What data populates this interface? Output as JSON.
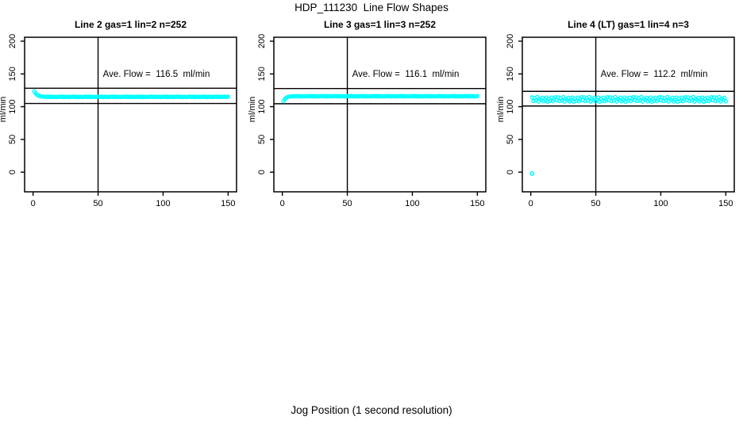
{
  "figure": {
    "title": "HDP_111230  Line Flow Shapes",
    "xlabel": "Jog Position (1 second resolution)",
    "background": "#ffffff",
    "point_color": "#00ffff",
    "line_color": "#000000"
  },
  "chart_data": {
    "type": "scatter",
    "title": "HDP_111230  Line Flow Shapes",
    "xlabel": "Jog Position (1 second resolution)",
    "ylabel": "ml/min",
    "xlim": [
      -6.5,
      156.5
    ],
    "ylim": [
      -30,
      206
    ],
    "x_ticks": [
      0,
      50,
      100,
      150
    ],
    "y_ticks": [
      0,
      50,
      100,
      150,
      200
    ],
    "vline_x": 50,
    "grid": false,
    "legend": "none",
    "panels": [
      {
        "title": "Line 2 gas=1 lin=2 n=252",
        "gas": 1,
        "lin": 2,
        "n": 252,
        "ave_flow": 116.5,
        "ave_flow_label": "Ave. Flow =  116.5  ml/min",
        "ref_lines": [
          128.2,
          104.9
        ],
        "x_start": 1,
        "x_step": 1,
        "y": [
          123.5,
          120.3,
          118.4,
          117.1,
          116.3,
          115.8,
          115.5,
          115.3,
          115.1,
          115.0,
          115.3,
          114.8,
          115.4,
          114.6,
          115.1,
          114.9,
          115.2,
          114.7,
          115.0,
          115.3,
          115.3,
          114.8,
          115.4,
          114.6,
          115.1,
          114.9,
          115.2,
          114.7,
          115.0,
          115.3,
          115.3,
          114.8,
          115.4,
          114.6,
          115.1,
          114.9,
          115.2,
          114.7,
          115.0,
          115.3,
          115.3,
          114.8,
          115.4,
          114.6,
          115.1,
          114.9,
          115.2,
          114.7,
          115.0,
          115.3,
          115.3,
          114.8,
          115.4,
          114.6,
          115.1,
          114.9,
          115.2,
          114.7,
          115.0,
          115.3,
          115.3,
          114.8,
          115.4,
          114.6,
          115.1,
          114.9,
          115.2,
          114.7,
          115.0,
          115.3,
          115.3,
          114.8,
          115.4,
          114.6,
          115.1,
          114.9,
          115.2,
          114.7,
          115.0,
          115.3,
          115.3,
          114.8,
          115.4,
          114.6,
          115.1,
          114.9,
          115.2,
          114.7,
          115.0,
          115.3,
          115.3,
          114.8,
          115.4,
          114.6,
          115.1,
          114.9,
          115.2,
          114.7,
          115.0,
          115.3,
          115.3,
          114.8,
          115.4,
          114.6,
          115.1,
          114.9,
          115.2,
          114.7,
          115.0,
          115.3,
          115.3,
          114.8,
          115.4,
          114.6,
          115.1,
          114.9,
          115.2,
          114.7,
          115.0,
          115.3,
          115.3,
          114.8,
          115.4,
          114.6,
          115.1,
          114.9,
          115.2,
          114.7,
          115.0,
          115.3,
          115.3,
          114.8,
          115.4,
          114.6,
          115.1,
          114.9,
          115.2,
          114.7,
          115.0,
          115.3,
          115.3,
          114.8,
          115.4,
          114.6,
          115.1,
          114.9,
          115.2,
          114.7,
          115.0,
          115.3
        ]
      },
      {
        "title": "Line 3 gas=1 lin=3 n=252",
        "gas": 1,
        "lin": 3,
        "n": 252,
        "ave_flow": 116.1,
        "ave_flow_label": "Ave. Flow =  116.1  ml/min",
        "ref_lines": [
          127.7,
          104.5
        ],
        "x_start": 1,
        "x_step": 1,
        "y": [
          108.4,
          111.6,
          113.5,
          114.6,
          115.2,
          115.5,
          115.7,
          115.8,
          115.9,
          115.9,
          116.2,
          115.7,
          116.3,
          115.5,
          116.0,
          115.8,
          116.1,
          115.6,
          115.9,
          116.2,
          116.2,
          115.7,
          116.3,
          115.5,
          116.0,
          115.8,
          116.1,
          115.6,
          115.9,
          116.2,
          116.2,
          115.7,
          116.3,
          115.5,
          116.0,
          115.8,
          116.1,
          115.6,
          115.9,
          116.2,
          116.2,
          115.7,
          116.3,
          115.5,
          116.0,
          115.8,
          116.1,
          115.6,
          115.9,
          116.2,
          116.2,
          115.7,
          116.3,
          115.5,
          116.0,
          115.8,
          116.1,
          115.6,
          115.9,
          116.2,
          116.2,
          115.7,
          116.3,
          115.5,
          116.0,
          115.8,
          116.1,
          115.6,
          115.9,
          116.2,
          116.2,
          115.7,
          116.3,
          115.5,
          116.0,
          115.8,
          116.1,
          115.6,
          115.9,
          116.2,
          116.2,
          115.7,
          116.3,
          115.5,
          116.0,
          115.8,
          116.1,
          115.6,
          115.9,
          116.2,
          116.2,
          115.7,
          116.3,
          115.5,
          116.0,
          115.8,
          116.1,
          115.6,
          115.9,
          116.2,
          116.2,
          115.7,
          116.3,
          115.5,
          116.0,
          115.8,
          116.1,
          115.6,
          115.9,
          116.2,
          116.2,
          115.7,
          116.3,
          115.5,
          116.0,
          115.8,
          116.1,
          115.6,
          115.9,
          116.2,
          116.2,
          115.7,
          116.3,
          115.5,
          116.0,
          115.8,
          116.1,
          115.6,
          115.9,
          116.2,
          116.2,
          115.7,
          116.3,
          115.5,
          116.0,
          115.8,
          116.1,
          115.6,
          115.9,
          116.2,
          116.2,
          115.7,
          116.3,
          115.5,
          116.0,
          115.8,
          116.1,
          115.6,
          115.9,
          116.2
        ]
      },
      {
        "title": "Line 4 (LT) gas=1 lin=4 n=3",
        "gas": 1,
        "lin": 4,
        "n": 3,
        "ave_flow": 112.2,
        "ave_flow_label": "Ave. Flow =  112.2  ml/min",
        "ref_lines": [
          123.4,
          101.0
        ],
        "outlier": {
          "x": 1,
          "y": -2
        },
        "x_start": 1,
        "x_step": 1,
        "y": [
          114.3,
          108.6,
          112.9,
          109.5,
          114.8,
          107.8,
          111.9,
          110.2,
          113.6,
          108.1,
          110.8,
          114.0,
          107.5,
          112.2,
          109.1,
          113.8,
          108.4,
          111.3,
          114.6,
          109.8,
          114.3,
          108.6,
          112.9,
          109.5,
          114.8,
          107.8,
          111.9,
          110.2,
          113.6,
          108.1,
          110.8,
          114.0,
          107.5,
          112.2,
          109.1,
          113.8,
          108.4,
          111.3,
          114.6,
          109.8,
          114.3,
          108.6,
          112.9,
          109.5,
          114.8,
          107.8,
          111.9,
          110.2,
          113.6,
          108.1,
          110.8,
          114.0,
          107.5,
          112.2,
          109.1,
          113.8,
          108.4,
          111.3,
          114.6,
          109.8,
          114.3,
          108.6,
          112.9,
          109.5,
          114.8,
          107.8,
          111.9,
          110.2,
          113.6,
          108.1,
          110.8,
          114.0,
          107.5,
          112.2,
          109.1,
          113.8,
          108.4,
          111.3,
          114.6,
          109.8,
          114.3,
          108.6,
          112.9,
          109.5,
          114.8,
          107.8,
          111.9,
          110.2,
          113.6,
          108.1,
          110.8,
          114.0,
          107.5,
          112.2,
          109.1,
          113.8,
          108.4,
          111.3,
          114.6,
          109.8,
          114.3,
          108.6,
          112.9,
          109.5,
          114.8,
          107.8,
          111.9,
          110.2,
          113.6,
          108.1,
          110.8,
          114.0,
          107.5,
          112.2,
          109.1,
          113.8,
          108.4,
          111.3,
          114.6,
          109.8,
          114.3,
          108.6,
          112.9,
          109.5,
          114.8,
          107.8,
          111.9,
          110.2,
          113.6,
          108.1,
          110.8,
          114.0,
          107.5,
          112.2,
          109.1,
          113.8,
          108.4,
          111.3,
          114.6,
          109.8,
          114.3,
          108.6,
          112.9,
          109.5,
          114.8,
          107.8,
          111.9,
          110.2,
          113.6,
          108.1
        ]
      }
    ]
  }
}
